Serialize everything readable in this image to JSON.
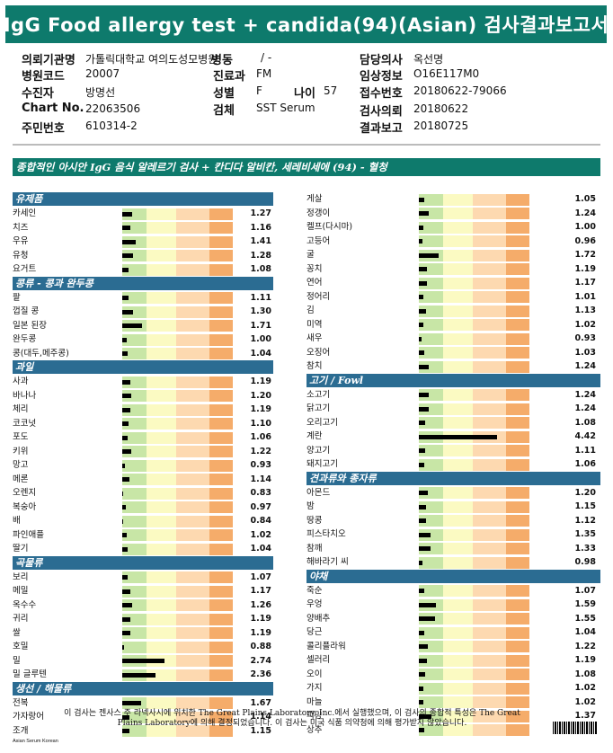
{
  "title": "IgG Food allergy test + candida(94)(Asian) 검사결과보고서",
  "info": {
    "hospital_label": "의뢰기관명",
    "hospital": "가톨릭대학교 여의도성모병원",
    "ward_label": "병동",
    "ward": "/ -",
    "doctor_label": "담당의사",
    "doctor": "옥선명",
    "code_label": "병원코드",
    "code": "20007",
    "dept_label": "진료과",
    "dept": "FM",
    "clinical_label": "임상정보",
    "clinical": "O16E117M0",
    "patient_label": "수진자",
    "patient": "방명선",
    "sex_label": "성별",
    "sex": "F",
    "age_label": "나이",
    "age": "57",
    "receipt_label": "접수번호",
    "receipt": "20180622-79066",
    "chart_label": "Chart No.",
    "chart": "22063506",
    "specimen_label": "검체",
    "specimen": "SST Serum",
    "request_label": "검사의뢰",
    "request": "20180622",
    "id_label": "주민번호",
    "id": "610314-2",
    "report_label": "결과보고",
    "report": "20180725"
  },
  "subtitle": "종합적인 아시안 IgG 음식 알레르기 검사 + 칸디다 알비칸, 세레비세에 (94) - 혈청",
  "left_sections": [
    {
      "title": "유제품",
      "items": [
        {
          "name": "카세인",
          "value": "1.27"
        },
        {
          "name": "치즈",
          "value": "1.16"
        },
        {
          "name": "우유",
          "value": "1.41"
        },
        {
          "name": "유청",
          "value": "1.28"
        },
        {
          "name": "요거트",
          "value": "1.08"
        }
      ]
    },
    {
      "title": "콩류 - 콩과 완두콩",
      "items": [
        {
          "name": "팥",
          "value": "1.11"
        },
        {
          "name": "껍질 콩",
          "value": "1.30"
        },
        {
          "name": "일본 된장",
          "value": "1.71"
        },
        {
          "name": "완두콩",
          "value": "1.00"
        },
        {
          "name": "콩(대두,메주콩)",
          "value": "1.04"
        }
      ]
    },
    {
      "title": "과일",
      "items": [
        {
          "name": "사과",
          "value": "1.19"
        },
        {
          "name": "바나나",
          "value": "1.20"
        },
        {
          "name": "체리",
          "value": "1.19"
        },
        {
          "name": "코코넛",
          "value": "1.10"
        },
        {
          "name": "포도",
          "value": "1.06"
        },
        {
          "name": "키위",
          "value": "1.22"
        },
        {
          "name": "망고",
          "value": "0.93"
        },
        {
          "name": "메론",
          "value": "1.14"
        },
        {
          "name": "오렌지",
          "value": "0.83"
        },
        {
          "name": "복숭아",
          "value": "0.97"
        },
        {
          "name": "배",
          "value": "0.84"
        },
        {
          "name": "파인애플",
          "value": "1.02"
        },
        {
          "name": "딸기",
          "value": "1.04"
        }
      ]
    },
    {
      "title": "곡물류",
      "items": [
        {
          "name": "보리",
          "value": "1.07"
        },
        {
          "name": "메밀",
          "value": "1.17"
        },
        {
          "name": "옥수수",
          "value": "1.26"
        },
        {
          "name": "귀리",
          "value": "1.19"
        },
        {
          "name": "쌀",
          "value": "1.19"
        },
        {
          "name": "호밀",
          "value": "0.88"
        },
        {
          "name": "밀",
          "value": "2.74"
        },
        {
          "name": "밀 글루텐",
          "value": "2.36"
        }
      ]
    },
    {
      "title": "생선 / 해물류",
      "items": [
        {
          "name": "전복",
          "value": "1.67"
        },
        {
          "name": "가자랑어",
          "value": "1.14"
        },
        {
          "name": "조개",
          "value": "1.15"
        }
      ]
    }
  ],
  "right_sections": [
    {
      "title": "",
      "items": [
        {
          "name": "게살",
          "value": "1.05"
        },
        {
          "name": "정갱이",
          "value": "1.24"
        },
        {
          "name": "켈프(다시마)",
          "value": "1.00"
        },
        {
          "name": "고등어",
          "value": "0.96"
        },
        {
          "name": "굴",
          "value": "1.72"
        },
        {
          "name": "꽁치",
          "value": "1.19"
        },
        {
          "name": "연어",
          "value": "1.17"
        },
        {
          "name": "정어리",
          "value": "1.01"
        },
        {
          "name": "김",
          "value": "1.13"
        },
        {
          "name": "미역",
          "value": "1.02"
        },
        {
          "name": "새우",
          "value": "0.93"
        },
        {
          "name": "오징어",
          "value": "1.03"
        },
        {
          "name": "참치",
          "value": "1.24"
        }
      ]
    },
    {
      "title": "고기 / Fowl",
      "items": [
        {
          "name": "소고기",
          "value": "1.24"
        },
        {
          "name": "닭고기",
          "value": "1.24"
        },
        {
          "name": "오리고기",
          "value": "1.08"
        },
        {
          "name": "계란",
          "value": "4.42"
        },
        {
          "name": "양고기",
          "value": "1.11"
        },
        {
          "name": "돼지고기",
          "value": "1.06"
        }
      ]
    },
    {
      "title": "견과류와 종자류",
      "items": [
        {
          "name": "아몬드",
          "value": "1.20"
        },
        {
          "name": "밤",
          "value": "1.15"
        },
        {
          "name": "땅콩",
          "value": "1.12"
        },
        {
          "name": "피스타치오",
          "value": "1.35"
        },
        {
          "name": "참깨",
          "value": "1.33"
        },
        {
          "name": "해바라기 씨",
          "value": "0.98"
        }
      ]
    },
    {
      "title": "야채",
      "items": [
        {
          "name": "죽순",
          "value": "1.07"
        },
        {
          "name": "우엉",
          "value": "1.59"
        },
        {
          "name": "양배추",
          "value": "1.55"
        },
        {
          "name": "당근",
          "value": "1.04"
        },
        {
          "name": "콜리플라워",
          "value": "1.22"
        },
        {
          "name": "셀러리",
          "value": "1.19"
        },
        {
          "name": "오이",
          "value": "1.08"
        },
        {
          "name": "가지",
          "value": "1.02"
        },
        {
          "name": "마늘",
          "value": "1.02"
        },
        {
          "name": "피망",
          "value": "1.37"
        },
        {
          "name": "상추",
          "value": "1.07"
        }
      ]
    }
  ],
  "footnote_line1": "이 검사는 젠사스 주 라넥사시에 위치한 The Great Plains Laboratory, Inc.에서 실행했으며, 이 검사의 종합적 특성은 The Great",
  "footnote_line2": "Plains Laboratory에 의해 결정되었습니다. 이 검사는 미국 식품 의약청에 의해 평가받지 않았습니다.",
  "footer_label": "Asian Serum Korean",
  "colors": {
    "teal": "#0e7a6c",
    "section_blue": "#2b6c92"
  }
}
